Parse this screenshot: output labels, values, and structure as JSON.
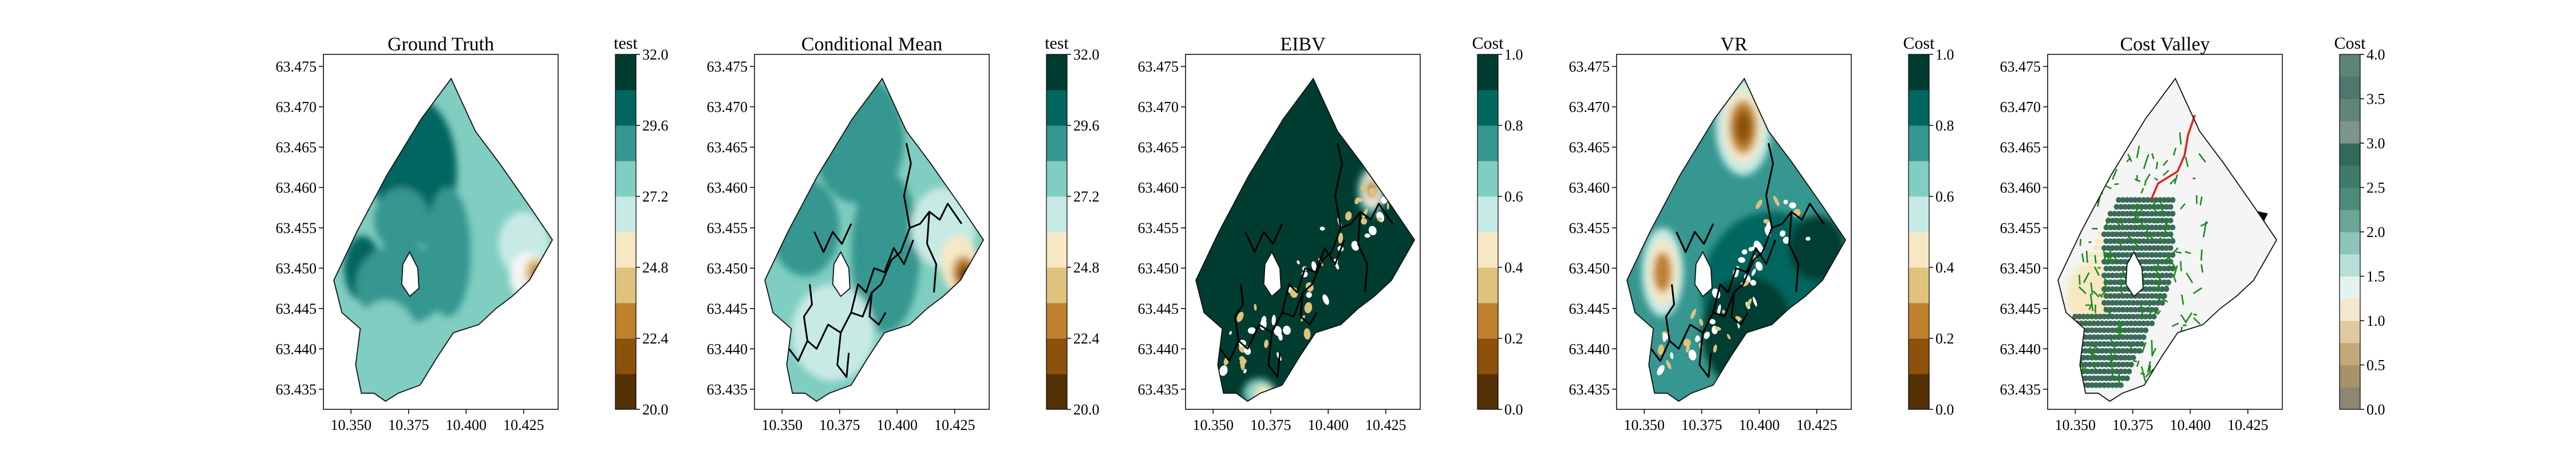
{
  "figure": {
    "background": "#ffffff"
  },
  "chart_data": [
    {
      "type": "heatmap",
      "title": "Ground Truth",
      "colorbar_label": "test",
      "colormap": "BrBG",
      "colorbar_ticks": [
        "20.0",
        "22.4",
        "24.8",
        "27.2",
        "29.6",
        "32.0"
      ],
      "colorbar_range": [
        20.0,
        32.0
      ],
      "xlim": [
        10.338,
        10.44
      ],
      "ylim": [
        63.4325,
        63.4765
      ],
      "x_ticks": [
        "10.350",
        "10.375",
        "10.400",
        "10.425"
      ],
      "y_ticks": [
        "63.435",
        "63.440",
        "63.445",
        "63.450",
        "63.455",
        "63.460",
        "63.465",
        "63.470",
        "63.475"
      ],
      "overlays": []
    },
    {
      "type": "heatmap",
      "title": "Conditional Mean",
      "colorbar_label": "test",
      "colormap": "BrBG",
      "colorbar_ticks": [
        "20.0",
        "22.4",
        "24.8",
        "27.2",
        "29.6",
        "32.0"
      ],
      "colorbar_range": [
        20.0,
        32.0
      ],
      "xlim": [
        10.338,
        10.44
      ],
      "ylim": [
        63.4325,
        63.4765
      ],
      "x_ticks": [
        "10.350",
        "10.375",
        "10.400",
        "10.425"
      ],
      "y_ticks": [
        "63.435",
        "63.440",
        "63.445",
        "63.450",
        "63.455",
        "63.460",
        "63.465",
        "63.470",
        "63.475"
      ],
      "overlays": [
        "trajectory"
      ]
    },
    {
      "type": "heatmap",
      "title": "EIBV",
      "colorbar_label": "Cost",
      "colormap": "BrBG",
      "colorbar_ticks": [
        "0.0",
        "0.2",
        "0.4",
        "0.6",
        "0.8",
        "1.0"
      ],
      "colorbar_range": [
        0.0,
        1.0
      ],
      "xlim": [
        10.338,
        10.44
      ],
      "ylim": [
        63.4325,
        63.4765
      ],
      "x_ticks": [
        "10.350",
        "10.375",
        "10.400",
        "10.425"
      ],
      "y_ticks": [
        "63.435",
        "63.440",
        "63.445",
        "63.450",
        "63.455",
        "63.460",
        "63.465",
        "63.470",
        "63.475"
      ],
      "overlays": [
        "trajectory"
      ]
    },
    {
      "type": "heatmap",
      "title": "VR",
      "colorbar_label": "Cost",
      "colormap": "BrBG",
      "colorbar_ticks": [
        "0.0",
        "0.2",
        "0.4",
        "0.6",
        "0.8",
        "1.0"
      ],
      "colorbar_range": [
        0.0,
        1.0
      ],
      "xlim": [
        10.338,
        10.44
      ],
      "ylim": [
        63.4325,
        63.4765
      ],
      "x_ticks": [
        "10.350",
        "10.375",
        "10.400",
        "10.425"
      ],
      "y_ticks": [
        "63.435",
        "63.440",
        "63.445",
        "63.450",
        "63.455",
        "63.460",
        "63.465",
        "63.470",
        "63.475"
      ],
      "overlays": [
        "trajectory"
      ]
    },
    {
      "type": "heatmap",
      "title": "Cost Valley",
      "colorbar_label": "Cost",
      "colormap": "BrBG",
      "colorbar_ticks": [
        "0.0",
        "0.5",
        "1.0",
        "1.5",
        "2.0",
        "2.5",
        "3.0",
        "3.5",
        "4.0"
      ],
      "colorbar_range": [
        0.0,
        4.0
      ],
      "xlim": [
        10.338,
        10.44
      ],
      "ylim": [
        63.4325,
        63.4765
      ],
      "x_ticks": [
        "10.350",
        "10.375",
        "10.400",
        "10.425"
      ],
      "y_ticks": [
        "63.435",
        "63.440",
        "63.445",
        "63.450",
        "63.455",
        "63.460",
        "63.465",
        "63.470",
        "63.475"
      ],
      "overlays": [
        "candidate-points",
        "rrt-tree",
        "planned-path",
        "current-location"
      ]
    }
  ],
  "colors": {
    "brbg": [
      "#543005",
      "#8c510a",
      "#bf812d",
      "#dfc27d",
      "#f6e8c3",
      "#f5f5f5",
      "#c7eae5",
      "#80cdc1",
      "#35978f",
      "#01665e",
      "#003c30"
    ],
    "trajectory": "#000000",
    "tree": "#1a8a1a",
    "path": "#e32222",
    "points": "#3a6a5a"
  }
}
